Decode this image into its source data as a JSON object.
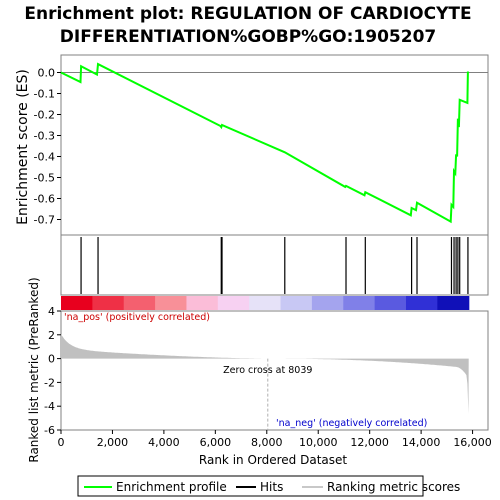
{
  "chart_data": {
    "type": "line",
    "title_line1": "Enrichment plot: REGULATION OF CARDIOCYTE",
    "title_line2": "DIFFERENTIATION%GOBP%GO:1905207",
    "es_panel": {
      "ylabel": "Enrichment score (ES)",
      "ylim": [
        -0.75,
        0.05
      ],
      "yticks": [
        "0.0",
        "-0.1",
        "-0.2",
        "-0.3",
        "-0.4",
        "-0.5",
        "-0.6",
        "-0.7"
      ],
      "ytick_values": [
        0.0,
        -0.1,
        -0.2,
        -0.3,
        -0.4,
        -0.5,
        -0.6,
        -0.7
      ],
      "series": [
        {
          "name": "Enrichment profile",
          "color": "#00ff00",
          "x": [
            0,
            760,
            780,
            1400,
            1440,
            6200,
            6230,
            6260,
            8700,
            11050,
            11080,
            11800,
            11830,
            13600,
            13630,
            13800,
            13840,
            15150,
            15180,
            15250,
            15280,
            15330,
            15360,
            15400,
            15430,
            15470,
            15500,
            15800,
            15820
          ],
          "y": [
            0.0,
            -0.045,
            0.03,
            -0.01,
            0.04,
            -0.255,
            -0.26,
            -0.25,
            -0.38,
            -0.545,
            -0.54,
            -0.585,
            -0.57,
            -0.68,
            -0.645,
            -0.655,
            -0.62,
            -0.71,
            -0.63,
            -0.64,
            -0.47,
            -0.48,
            -0.39,
            -0.4,
            -0.22,
            -0.26,
            -0.13,
            -0.145,
            0.005
          ]
        }
      ]
    },
    "hits": [
      780,
      1440,
      6230,
      6260,
      8700,
      11080,
      11830,
      13630,
      13840,
      15180,
      15280,
      15360,
      15430,
      15500,
      15820
    ],
    "ranked_panel": {
      "ylabel": "Ranked list metric (PreRanked)",
      "ylim": [
        -6,
        4
      ],
      "yticks": [
        "4",
        "2",
        "0",
        "-2",
        "-4",
        "-6"
      ],
      "ytick_values": [
        4,
        2,
        0,
        -2,
        -4,
        -6
      ],
      "zero_cross_label": "Zero cross at 8039",
      "zero_cross": 8039,
      "pos_label": "'na_pos' (positively correlated)",
      "neg_label": "'na_neg' (negatively correlated)"
    },
    "xlabel": "Rank in Ordered Dataset",
    "xlim": [
      0,
      16600
    ],
    "xticks": [
      "0",
      "2,000",
      "4,000",
      "6,000",
      "8,000",
      "10,000",
      "12,000",
      "14,000",
      "16,000"
    ],
    "xtick_values": [
      0,
      2000,
      4000,
      6000,
      8000,
      10000,
      12000,
      14000,
      16000
    ],
    "total_ranks": 15850,
    "heatbar_colors": [
      "#e8001e",
      "#ef3046",
      "#f4606f",
      "#f89098",
      "#fbbdd8",
      "#f7d1f2",
      "#e6e2f8",
      "#c8c8f4",
      "#a4a4ee",
      "#8080e8",
      "#5a5ae0",
      "#3030d6",
      "#1010b8"
    ],
    "legend": [
      {
        "label": "Enrichment profile",
        "color": "#00ff00"
      },
      {
        "label": "Hits",
        "color": "#000000"
      },
      {
        "label": "Ranking metric scores",
        "color": "#c8c8c8"
      }
    ]
  }
}
